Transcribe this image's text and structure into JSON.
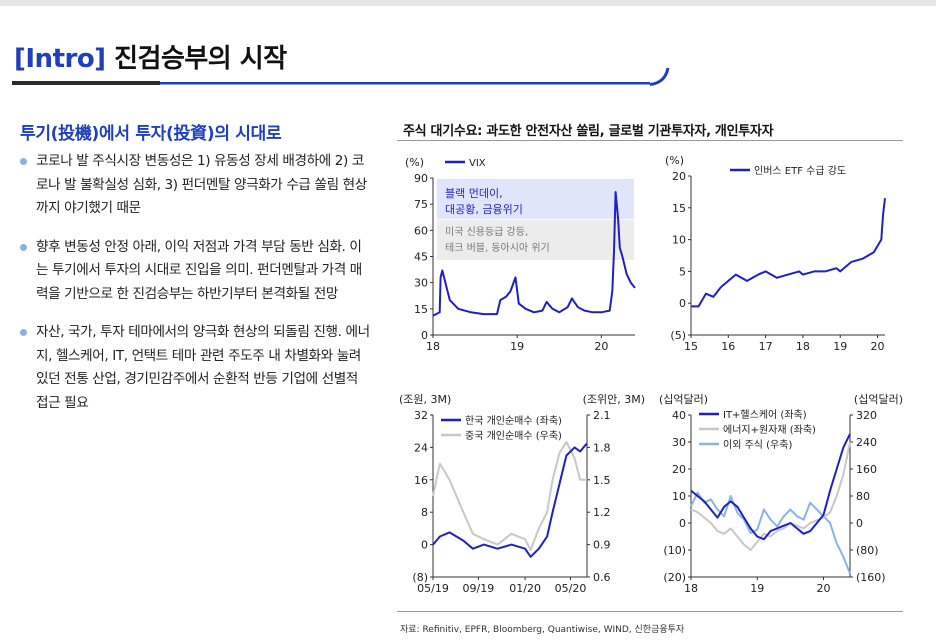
{
  "page": {
    "title_bracket": "[Intro]",
    "title_text": "진검승부의 시작",
    "subtitle": "투기(投機)에서 투자(投資)의 시대로",
    "bullets": [
      "코로나 발 주식시장 변동성은 1) 유동성 장세 배경하에 2) 코로나 발 불확실성 심화, 3) 펀더멘탈 양극화가 수급 쏠림 현상까지 야기했기 때문",
      "향후 변동성 안정 아래, 이익 저점과 가격 부담 동반 심화. 이는 투기에서 투자의 시대로 진입을 의미. 펀더멘탈과 가격 매력을 기반으로 한 진검승부는 하반기부터 본격화될 전망",
      "자산, 국가, 투자 테마에서의 양극화 현상의 되돌림 진행. 에너지, 헬스케어, IT, 언택트 테마 관련 주도주 내 차별화와 눌려있던 전통 산업, 경기민감주에서 순환적 반등 기업에 선별적 접근 필요"
    ],
    "chart_section_title": "주식 대기수요: 과도한 안전자산 쏠림, 글로벌 기관투자자, 개인투자자",
    "source": "자료: Refinitiv, EPFR, Bloomberg, Quantiwise, WIND, 신한금융투자",
    "colors": {
      "accent": "#1f3fbf",
      "bullet": "#8db1df",
      "dark_blue": "#1f1fc8",
      "gray": "#b8b8b8",
      "light_blue": "#8ab4e8"
    }
  },
  "chart_data": [
    {
      "type": "line",
      "y_unit": "(%)",
      "x_ticks": [
        "18",
        "19",
        "20"
      ],
      "x": [
        2018.0,
        2018.08,
        2018.09,
        2018.11,
        2018.2,
        2018.3,
        2018.45,
        2018.6,
        2018.76,
        2018.8,
        2018.87,
        2018.92,
        2018.98,
        2019.02,
        2019.1,
        2019.2,
        2019.3,
        2019.35,
        2019.42,
        2019.5,
        2019.6,
        2019.65,
        2019.72,
        2019.8,
        2019.9,
        2020.0,
        2020.1,
        2020.13,
        2020.15,
        2020.17,
        2020.2,
        2020.22,
        2020.25,
        2020.3,
        2020.35,
        2020.4
      ],
      "y_ticks": [
        0,
        15,
        30,
        45,
        60,
        75,
        90
      ],
      "ylim": [
        0,
        90
      ],
      "series": [
        {
          "name": "VIX",
          "color": "#1f1fc8",
          "values": [
            11,
            13,
            33,
            37,
            20,
            15,
            13,
            12,
            12,
            20,
            22,
            25,
            33,
            18,
            15,
            13,
            14,
            19,
            15,
            13,
            16,
            21,
            16,
            14,
            13,
            13,
            14,
            25,
            48,
            82,
            66,
            50,
            45,
            35,
            30,
            27
          ]
        }
      ],
      "annotations": [
        "블랙 먼데이,",
        "대공황, 금융위기",
        "미국 신용등급 강등,",
        "테크 버블, 동아시아 위기"
      ]
    },
    {
      "type": "line",
      "y_unit": "(%)",
      "x_ticks": [
        "15",
        "16",
        "17",
        "18",
        "19",
        "20"
      ],
      "x": [
        2015.0,
        2015.2,
        2015.4,
        2015.6,
        2015.8,
        2016.0,
        2016.2,
        2016.5,
        2016.8,
        2017.0,
        2017.3,
        2017.6,
        2017.9,
        2018.0,
        2018.3,
        2018.6,
        2018.9,
        2019.0,
        2019.3,
        2019.6,
        2019.9,
        2020.0,
        2020.1,
        2020.15,
        2020.2
      ],
      "y_ticks": [
        -5,
        0,
        5,
        10,
        15,
        20
      ],
      "ylim": [
        -5,
        20
      ],
      "series": [
        {
          "name": "인버스 ETF 수급 강도",
          "color": "#1f1fc8",
          "values": [
            -0.5,
            -0.5,
            1.5,
            1,
            2.5,
            3.5,
            4.5,
            3.5,
            4.5,
            5,
            4,
            4.5,
            5,
            4.5,
            5,
            5,
            5.5,
            5,
            6.5,
            7,
            8,
            9,
            10,
            14,
            16.5
          ]
        }
      ]
    },
    {
      "type": "line",
      "left_unit": "(조원, 3M)",
      "right_unit": "(조위안, 3M)",
      "x_ticks": [
        "05/19",
        "09/19",
        "01/20",
        "05/20"
      ],
      "x": [
        2019.33,
        2019.38,
        2019.45,
        2019.55,
        2019.62,
        2019.7,
        2019.8,
        2019.9,
        2020.0,
        2020.04,
        2020.1,
        2020.16,
        2020.2,
        2020.25,
        2020.3,
        2020.36,
        2020.4,
        2020.45
      ],
      "y_ticks": [
        -8,
        0,
        8,
        16,
        24,
        32
      ],
      "ylim": [
        -8,
        32
      ],
      "y2_ticks": [
        0.6,
        0.9,
        1.2,
        1.5,
        1.8,
        2.1
      ],
      "y2lim": [
        0.6,
        2.1
      ],
      "series": [
        {
          "name": "한국 개인순매수 (좌축)",
          "color": "#1f1fc8",
          "axis": "left",
          "values": [
            0,
            2,
            3,
            1,
            -1,
            0,
            -1,
            0,
            -1,
            -3,
            -1,
            2,
            8,
            15,
            22,
            24,
            23,
            25
          ]
        },
        {
          "name": "중국 개인순매수 (우축)",
          "color": "#c8c8c8",
          "axis": "right",
          "values": [
            1.35,
            1.65,
            1.5,
            1.2,
            1.0,
            0.95,
            0.9,
            1.0,
            0.95,
            0.85,
            1.05,
            1.2,
            1.5,
            1.75,
            1.85,
            1.7,
            1.5,
            1.5
          ]
        }
      ]
    },
    {
      "type": "line",
      "left_unit": "(십억달러)",
      "right_unit": "(십억달러)",
      "x_ticks": [
        "18",
        "19",
        "20"
      ],
      "x": [
        2018.0,
        2018.1,
        2018.2,
        2018.3,
        2018.4,
        2018.5,
        2018.6,
        2018.7,
        2018.8,
        2018.9,
        2019.0,
        2019.1,
        2019.2,
        2019.3,
        2019.4,
        2019.5,
        2019.6,
        2019.7,
        2019.8,
        2019.9,
        2020.0,
        2020.1,
        2020.2,
        2020.3,
        2020.4
      ],
      "y_ticks": [
        -20,
        -10,
        0,
        10,
        20,
        30,
        40
      ],
      "ylim": [
        -20,
        40
      ],
      "y2_ticks": [
        -160,
        -80,
        0,
        80,
        160,
        240,
        320
      ],
      "y2lim": [
        -160,
        320
      ],
      "series": [
        {
          "name": "IT+헬스케어 (좌축)",
          "color": "#1f1fc8",
          "axis": "left",
          "values": [
            12,
            10,
            8,
            5,
            2,
            6,
            8,
            6,
            2,
            -2,
            -5,
            -6,
            -3,
            -2,
            -1,
            0,
            -2,
            -4,
            -3,
            0,
            3,
            12,
            20,
            28,
            33
          ]
        },
        {
          "name": "에너지+원자재 (좌축)",
          "color": "#c8c8c8",
          "axis": "left",
          "values": [
            5,
            4,
            2,
            0,
            -3,
            -4,
            -2,
            -5,
            -8,
            -10,
            -7,
            -4,
            -5,
            -3,
            -2,
            0,
            -1,
            -2,
            0,
            1,
            2,
            4,
            10,
            18,
            30
          ]
        },
        {
          "name": "이외 주식 (우축)",
          "color": "#8ab4e8",
          "axis": "right",
          "values": [
            50,
            90,
            60,
            70,
            40,
            20,
            80,
            30,
            10,
            -30,
            -20,
            40,
            10,
            -10,
            20,
            40,
            20,
            10,
            60,
            40,
            20,
            0,
            -60,
            -100,
            -150
          ]
        }
      ]
    }
  ]
}
